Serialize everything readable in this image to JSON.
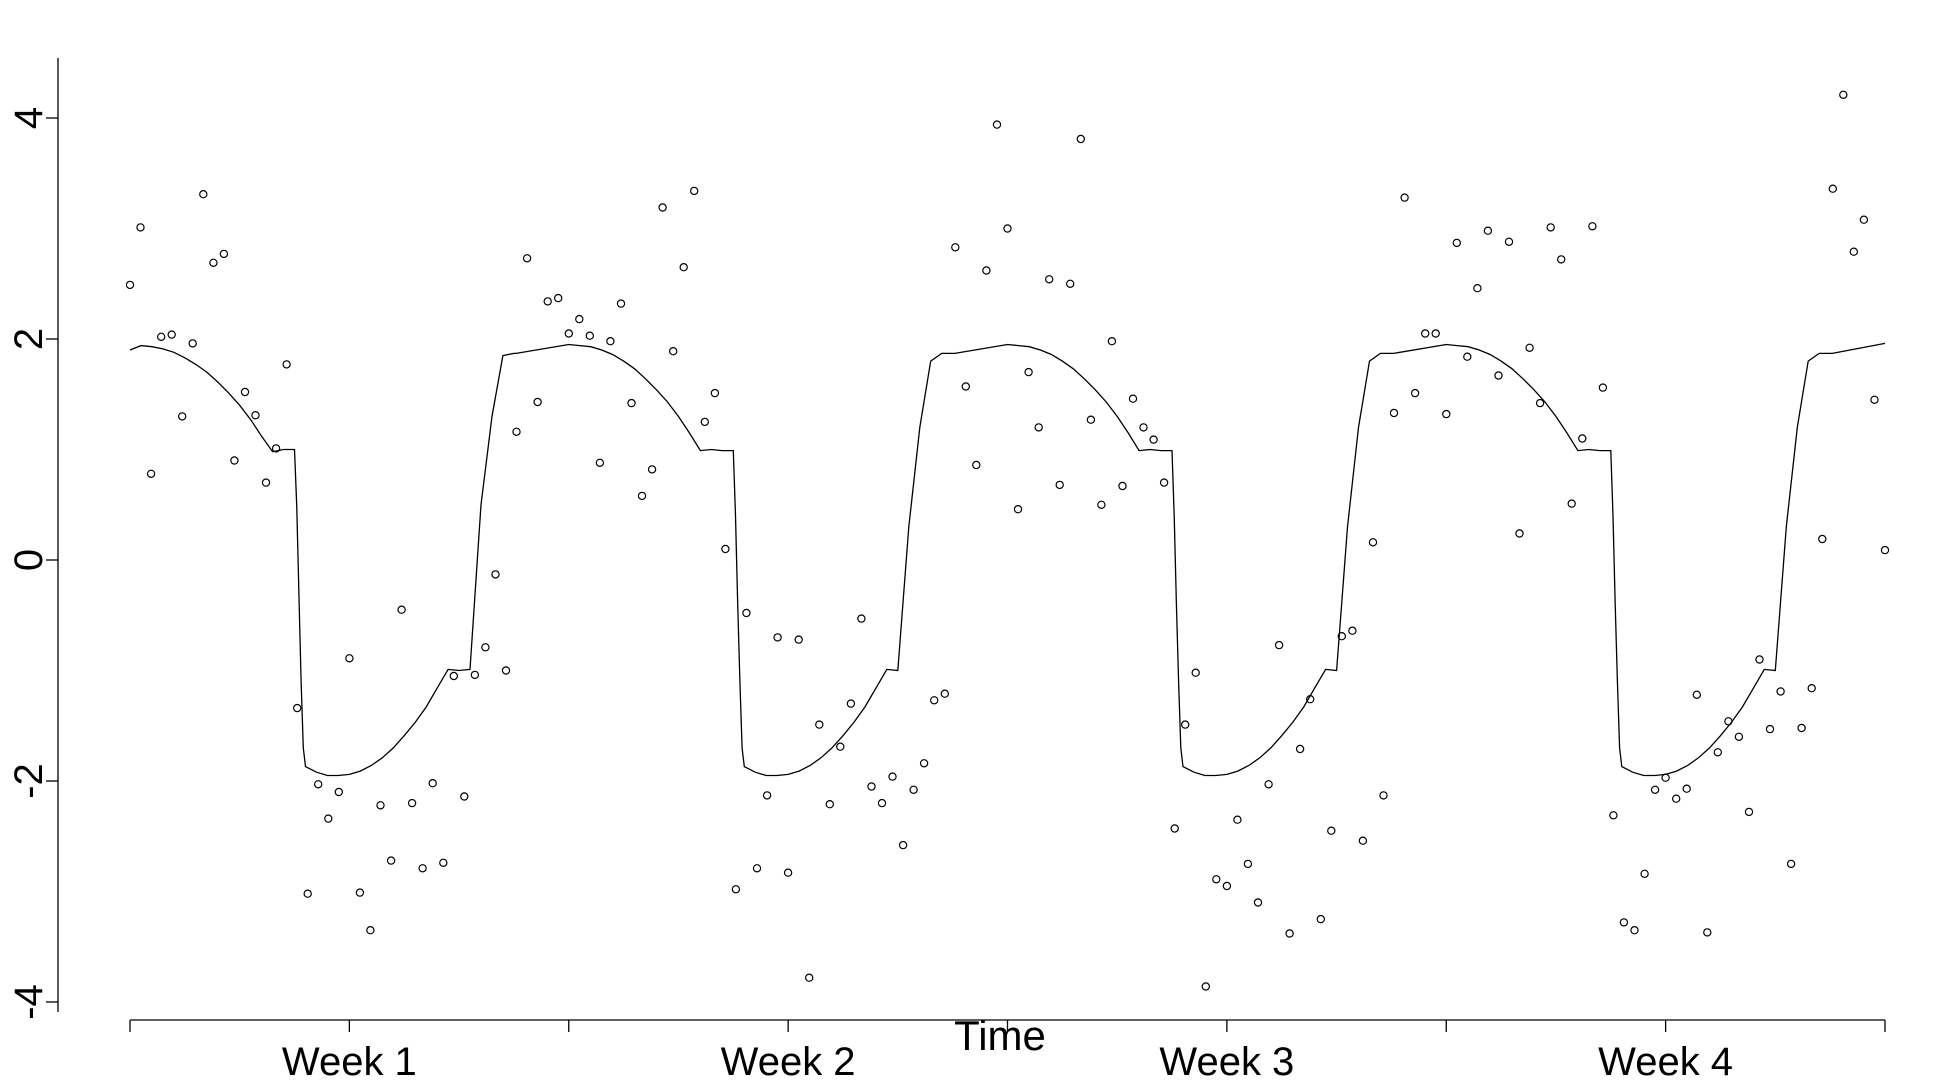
{
  "chart_data": {
    "type": "scatter",
    "title": "",
    "xlabel": "Time",
    "ylabel": "",
    "xlim": [
      0,
      4
    ],
    "ylim": [
      -4,
      4
    ],
    "x_ticks": [
      0,
      0.5,
      1,
      1.5,
      2,
      2.5,
      3,
      3.5,
      4
    ],
    "x_tick_labels": [
      {
        "value": 0.5,
        "label": "Week 1"
      },
      {
        "value": 1.5,
        "label": "Week 2"
      },
      {
        "value": 2.5,
        "label": "Week 3"
      },
      {
        "value": 3.5,
        "label": "Week 4"
      }
    ],
    "y_ticks": [
      -4,
      -2,
      0,
      2,
      4
    ],
    "y_tick_labels": [
      "-4",
      "-2",
      "0",
      "2",
      "4"
    ],
    "grid": false,
    "legend": "none",
    "colors": {
      "points": "#000000",
      "line": "#000000",
      "axes": "#000000"
    },
    "series": [
      {
        "type": "scatter",
        "marker": "open-circle",
        "x": [
          0.0,
          0.024,
          0.048,
          0.071,
          0.095,
          0.119,
          0.143,
          0.167,
          0.19,
          0.214,
          0.238,
          0.262,
          0.286,
          0.31,
          0.333,
          0.357,
          0.381,
          0.405,
          0.429,
          0.452,
          0.476,
          0.5,
          0.524,
          0.548,
          0.571,
          0.595,
          0.619,
          0.643,
          0.667,
          0.69,
          0.714,
          0.738,
          0.762,
          0.786,
          0.81,
          0.833,
          0.857,
          0.881,
          0.905,
          0.929,
          0.952,
          0.976,
          1.0,
          1.024,
          1.048,
          1.071,
          1.095,
          1.119,
          1.143,
          1.167,
          1.19,
          1.214,
          1.238,
          1.262,
          1.286,
          1.31,
          1.333,
          1.357,
          1.381,
          1.405,
          1.429,
          1.452,
          1.476,
          1.5,
          1.524,
          1.548,
          1.571,
          1.595,
          1.619,
          1.643,
          1.667,
          1.69,
          1.714,
          1.738,
          1.762,
          1.786,
          1.81,
          1.833,
          1.857,
          1.881,
          1.905,
          1.929,
          1.952,
          1.976,
          2.0,
          2.024,
          2.048,
          2.071,
          2.095,
          2.119,
          2.143,
          2.167,
          2.19,
          2.214,
          2.238,
          2.262,
          2.286,
          2.31,
          2.333,
          2.357,
          2.381,
          2.405,
          2.429,
          2.452,
          2.476,
          2.5,
          2.524,
          2.548,
          2.571,
          2.595,
          2.619,
          2.643,
          2.667,
          2.69,
          2.714,
          2.738,
          2.762,
          2.786,
          2.81,
          2.833,
          2.857,
          2.881,
          2.905,
          2.929,
          2.952,
          2.976,
          3.0,
          3.024,
          3.048,
          3.071,
          3.095,
          3.119,
          3.143,
          3.167,
          3.19,
          3.214,
          3.238,
          3.262,
          3.286,
          3.31,
          3.333,
          3.357,
          3.381,
          3.405,
          3.429,
          3.452,
          3.476,
          3.5,
          3.524,
          3.548,
          3.571,
          3.595,
          3.619,
          3.643,
          3.667,
          3.69,
          3.714,
          3.738,
          3.762,
          3.786,
          3.81,
          3.833,
          3.857,
          3.881,
          3.905,
          3.929,
          3.952,
          3.976,
          4.0
        ],
        "y": [
          2.49,
          3.01,
          0.78,
          2.02,
          2.04,
          1.3,
          1.96,
          3.31,
          2.69,
          2.77,
          0.9,
          1.52,
          1.31,
          0.7,
          1.01,
          1.77,
          -1.34,
          -3.02,
          -2.03,
          -2.34,
          -2.1,
          -0.89,
          -3.01,
          -3.35,
          -2.22,
          -2.72,
          -0.45,
          -2.2,
          -2.79,
          -2.02,
          -2.74,
          -1.05,
          -2.14,
          -1.04,
          -0.79,
          -0.13,
          -1.0,
          1.16,
          2.73,
          1.43,
          2.34,
          2.37,
          2.05,
          2.18,
          2.03,
          0.88,
          1.98,
          2.32,
          1.42,
          0.58,
          0.82,
          3.19,
          1.89,
          2.65,
          3.34,
          1.25,
          1.51,
          0.1,
          -2.98,
          -0.48,
          -2.79,
          -2.13,
          -0.7,
          -2.83,
          -0.72,
          -3.78,
          -1.49,
          -2.21,
          -1.69,
          -1.3,
          -0.53,
          -2.05,
          -2.2,
          -1.96,
          -2.58,
          -2.08,
          -1.84,
          -1.27,
          -1.21,
          2.83,
          1.57,
          0.86,
          2.62,
          3.94,
          3.0,
          0.46,
          1.7,
          1.2,
          2.54,
          0.68,
          2.5,
          3.81,
          1.27,
          0.5,
          1.98,
          0.67,
          1.46,
          1.2,
          1.09,
          0.7,
          -2.43,
          -1.49,
          -1.02,
          -3.86,
          -2.89,
          -2.95,
          -2.35,
          -2.75,
          -3.1,
          -2.03,
          -0.77,
          -3.38,
          -1.71,
          -1.26,
          -3.25,
          -2.45,
          -0.69,
          -0.64,
          -2.54,
          0.16,
          -2.13,
          1.33,
          3.28,
          1.51,
          2.05,
          2.05,
          1.32,
          2.87,
          1.84,
          2.46,
          2.98,
          1.67,
          2.88,
          0.24,
          1.92,
          1.42,
          3.01,
          2.72,
          0.51,
          1.1,
          3.02,
          1.56,
          -2.31,
          -3.28,
          -3.35,
          -2.84,
          -2.08,
          -1.97,
          -2.16,
          -2.07,
          -1.22,
          -3.37,
          -1.74,
          -1.46,
          -1.6,
          -2.28,
          -0.9,
          -1.53,
          -1.19,
          -2.75,
          -1.52,
          -1.16,
          0.19,
          3.36,
          4.21,
          2.79,
          3.08,
          1.45,
          0.09
        ]
      },
      {
        "type": "line",
        "x": [
          0.0,
          0.025,
          0.05,
          0.075,
          0.1,
          0.125,
          0.15,
          0.175,
          0.2,
          0.225,
          0.25,
          0.275,
          0.3,
          0.325,
          0.35,
          0.375,
          0.38,
          0.385,
          0.39,
          0.395,
          0.4,
          0.425,
          0.45,
          0.475,
          0.5,
          0.525,
          0.55,
          0.575,
          0.6,
          0.625,
          0.65,
          0.675,
          0.7,
          0.725,
          0.75,
          0.775,
          0.8,
          0.825,
          0.85,
          0.875,
          0.88,
          1.0,
          1.025,
          1.05,
          1.075,
          1.1,
          1.125,
          1.15,
          1.175,
          1.2,
          1.225,
          1.25,
          1.275,
          1.3,
          1.325,
          1.35,
          1.375,
          1.38,
          1.385,
          1.39,
          1.395,
          1.4,
          1.425,
          1.45,
          1.475,
          1.5,
          1.525,
          1.55,
          1.575,
          1.6,
          1.625,
          1.65,
          1.675,
          1.7,
          1.725,
          1.75,
          1.775,
          1.8,
          1.825,
          1.85,
          1.875,
          1.88,
          2.0,
          2.025,
          2.05,
          2.075,
          2.1,
          2.125,
          2.15,
          2.175,
          2.2,
          2.225,
          2.25,
          2.275,
          2.3,
          2.325,
          2.35,
          2.375,
          2.38,
          2.385,
          2.39,
          2.395,
          2.4,
          2.425,
          2.45,
          2.475,
          2.5,
          2.525,
          2.55,
          2.575,
          2.6,
          2.625,
          2.65,
          2.675,
          2.7,
          2.725,
          2.75,
          2.775,
          2.8,
          2.825,
          2.85,
          2.875,
          2.88,
          3.0,
          3.025,
          3.05,
          3.075,
          3.1,
          3.125,
          3.15,
          3.175,
          3.2,
          3.225,
          3.25,
          3.275,
          3.3,
          3.325,
          3.35,
          3.375,
          3.38,
          3.385,
          3.39,
          3.395,
          3.4,
          3.425,
          3.45,
          3.475,
          3.5,
          3.525,
          3.55,
          3.575,
          3.6,
          3.625,
          3.65,
          3.675,
          3.7,
          3.725,
          3.75,
          3.775,
          3.8,
          3.825,
          3.85,
          3.875,
          3.88,
          4.0
        ],
        "y": [
          1.9,
          1.94,
          1.93,
          1.91,
          1.88,
          1.83,
          1.77,
          1.7,
          1.61,
          1.51,
          1.4,
          1.27,
          1.12,
          0.98,
          1.0,
          1.0,
          0.5,
          -0.3,
          -1.1,
          -1.7,
          -1.87,
          -1.92,
          -1.95,
          -1.95,
          -1.94,
          -1.91,
          -1.86,
          -1.79,
          -1.7,
          -1.59,
          -1.47,
          -1.33,
          -1.16,
          -0.99,
          -1.0,
          -0.99,
          0.5,
          1.3,
          1.85,
          1.87,
          1.87,
          1.95,
          1.94,
          1.93,
          1.9,
          1.86,
          1.8,
          1.73,
          1.64,
          1.54,
          1.43,
          1.3,
          1.15,
          0.99,
          1.0,
          0.99,
          0.99,
          0.4,
          -0.4,
          -1.1,
          -1.7,
          -1.87,
          -1.92,
          -1.95,
          -1.95,
          -1.94,
          -1.91,
          -1.86,
          -1.79,
          -1.7,
          -1.59,
          -1.47,
          -1.33,
          -1.16,
          -0.99,
          -1.0,
          0.3,
          1.2,
          1.8,
          1.87,
          1.87,
          1.87,
          1.95,
          1.94,
          1.93,
          1.9,
          1.86,
          1.8,
          1.73,
          1.64,
          1.54,
          1.43,
          1.3,
          1.15,
          0.99,
          1.0,
          0.99,
          0.99,
          0.4,
          -0.4,
          -1.1,
          -1.7,
          -1.87,
          -1.92,
          -1.95,
          -1.95,
          -1.94,
          -1.91,
          -1.86,
          -1.79,
          -1.7,
          -1.59,
          -1.47,
          -1.33,
          -1.16,
          -0.99,
          -1.0,
          0.3,
          1.2,
          1.8,
          1.87,
          1.87,
          1.87,
          1.95,
          1.94,
          1.93,
          1.9,
          1.86,
          1.8,
          1.73,
          1.64,
          1.54,
          1.43,
          1.3,
          1.15,
          0.99,
          1.0,
          0.99,
          0.99,
          0.4,
          -0.4,
          -1.1,
          -1.7,
          -1.87,
          -1.92,
          -1.95,
          -1.95,
          -1.94,
          -1.91,
          -1.86,
          -1.79,
          -1.7,
          -1.59,
          -1.47,
          -1.33,
          -1.16,
          -0.99,
          -1.0,
          0.3,
          1.2,
          1.8,
          1.87,
          1.87,
          1.87,
          1.96
        ]
      }
    ]
  }
}
